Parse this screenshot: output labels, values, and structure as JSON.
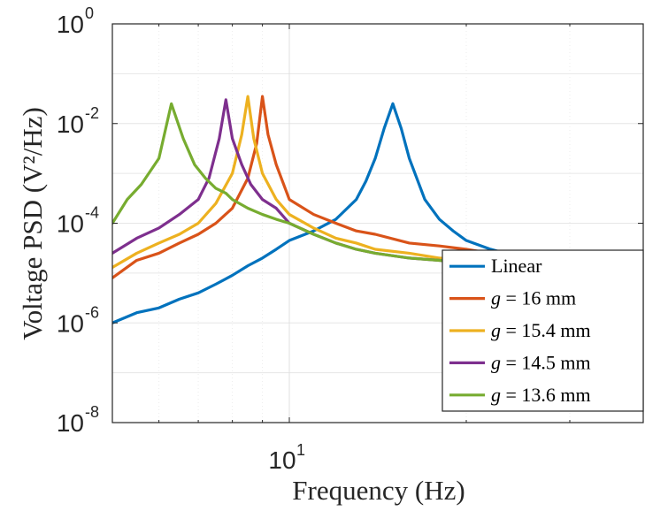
{
  "chart_data": {
    "type": "line",
    "xlabel": "Frequency (Hz)",
    "ylabel": "Voltage PSD (V²/Hz)",
    "xscale": "log",
    "yscale": "log",
    "xlim": [
      5,
      40
    ],
    "ylim": [
      1e-08,
      1
    ],
    "x_ticks": [
      {
        "base": "10",
        "exp": "1",
        "value": 10
      }
    ],
    "y_ticks": [
      {
        "base": "10",
        "exp": "0",
        "value": 1
      },
      {
        "base": "10",
        "exp": "-2",
        "value": 0.01
      },
      {
        "base": "10",
        "exp": "-4",
        "value": 0.0001
      },
      {
        "base": "10",
        "exp": "-6",
        "value": 1e-06
      },
      {
        "base": "10",
        "exp": "-8",
        "value": 1e-08
      }
    ],
    "grid": true,
    "legend_position": "bottom-right",
    "series": [
      {
        "name": "Linear",
        "label_parts": [
          "Linear",
          ""
        ],
        "color": "#0072BD",
        "x": [
          5.0,
          5.5,
          6.0,
          6.5,
          7.0,
          7.5,
          8.0,
          8.5,
          9.0,
          9.5,
          10.0,
          11.0,
          12.0,
          13.0,
          13.5,
          14.0,
          14.5,
          15.0,
          15.5,
          16.0,
          17.0,
          18.0,
          19.0,
          20.0,
          22.0,
          25.0,
          28.0,
          32.0,
          36.0,
          40.0
        ],
        "y": [
          1e-06,
          1.6e-06,
          2e-06,
          3e-06,
          4e-06,
          6e-06,
          9e-06,
          1.4e-05,
          2e-05,
          3e-05,
          4.5e-05,
          7e-05,
          0.00012,
          0.0003,
          0.0007,
          0.002,
          0.008,
          0.025,
          0.008,
          0.002,
          0.0003,
          0.00012,
          7e-05,
          4.5e-05,
          3e-05,
          2e-05,
          1.5e-05,
          1.2e-05,
          1e-05,
          8e-06
        ]
      },
      {
        "name": "g = 16 mm",
        "label_parts": [
          "g",
          " = 16 mm"
        ],
        "color": "#D95319",
        "x": [
          5.0,
          5.5,
          6.0,
          6.5,
          7.0,
          7.5,
          8.0,
          8.5,
          8.8,
          9.0,
          9.2,
          9.5,
          10.0,
          11.0,
          12.0,
          13.0,
          14.0,
          16.0,
          18.0,
          20.0,
          22.0,
          25.0,
          28.0,
          32.0,
          36.0,
          40.0
        ],
        "y": [
          8e-06,
          1.8e-05,
          2.5e-05,
          4e-05,
          6e-05,
          0.0001,
          0.0002,
          0.0008,
          0.004,
          0.035,
          0.006,
          0.0015,
          0.0003,
          0.00015,
          0.0001,
          7e-05,
          6e-05,
          4e-05,
          3.5e-05,
          3e-05,
          2.5e-05,
          2e-05,
          1.8e-05,
          1.5e-05,
          1.3e-05,
          1.1e-05
        ]
      },
      {
        "name": "g = 15.4 mm",
        "label_parts": [
          "g",
          " = 15.4 mm"
        ],
        "color": "#EDB120",
        "x": [
          5.0,
          5.5,
          6.0,
          6.5,
          7.0,
          7.5,
          8.0,
          8.3,
          8.5,
          8.7,
          9.0,
          9.5,
          10.0,
          11.0,
          12.0,
          13.0,
          14.0,
          16.0,
          18.0,
          20.0,
          22.0,
          25.0,
          28.0,
          32.0,
          36.0,
          40.0
        ],
        "y": [
          1.3e-05,
          2.5e-05,
          4e-05,
          6e-05,
          0.0001,
          0.00025,
          0.001,
          0.006,
          0.035,
          0.005,
          0.001,
          0.0003,
          0.00015,
          8e-05,
          5e-05,
          4e-05,
          3e-05,
          2.5e-05,
          2e-05,
          1.8e-05,
          1.5e-05,
          1.3e-05,
          1.1e-05,
          1e-05,
          9e-06,
          8e-06
        ]
      },
      {
        "name": "g = 14.5 mm",
        "label_parts": [
          "g",
          " = 14.5 mm"
        ],
        "color": "#7E2F8E",
        "x": [
          5.0,
          5.5,
          6.0,
          6.5,
          7.0,
          7.3,
          7.6,
          7.8,
          8.0,
          8.3,
          8.6,
          9.0,
          9.5,
          10.0,
          11.0,
          12.0,
          13.0,
          14.0,
          16.0,
          18.0,
          20.0,
          22.0,
          25.0,
          28.0,
          32.0,
          36.0,
          40.0
        ],
        "y": [
          2.5e-05,
          5e-05,
          8e-05,
          0.00015,
          0.0003,
          0.0008,
          0.005,
          0.03,
          0.005,
          0.0015,
          0.0006,
          0.0003,
          0.0002,
          0.0001,
          6e-05,
          4e-05,
          3e-05,
          2.5e-05,
          2e-05,
          1.8e-05,
          1.6e-05,
          1.4e-05,
          1.2e-05,
          1e-05,
          9e-06,
          8e-06,
          7e-06
        ]
      },
      {
        "name": "g = 13.6 mm",
        "label_parts": [
          "g",
          " = 13.6 mm"
        ],
        "color": "#77AC30",
        "x": [
          5.0,
          5.3,
          5.6,
          6.0,
          6.3,
          6.6,
          6.9,
          7.2,
          7.5,
          7.8,
          8.0,
          8.5,
          9.0,
          9.5,
          10.0,
          11.0,
          12.0,
          13.0,
          14.0,
          16.0,
          18.0,
          20.0,
          22.0,
          25.0,
          28.0,
          32.0,
          36.0,
          40.0
        ],
        "y": [
          0.0001,
          0.0003,
          0.0006,
          0.002,
          0.025,
          0.005,
          0.0015,
          0.0008,
          0.0005,
          0.0004,
          0.0003,
          0.0002,
          0.00015,
          0.00012,
          0.0001,
          6e-05,
          4e-05,
          3e-05,
          2.5e-05,
          2e-05,
          1.8e-05,
          1.6e-05,
          1.4e-05,
          1.2e-05,
          1e-05,
          9e-06,
          8e-06,
          1.2e-05
        ]
      }
    ]
  }
}
